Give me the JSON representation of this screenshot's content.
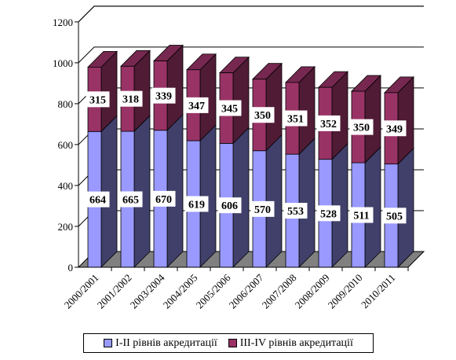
{
  "chart_data": {
    "type": "bar",
    "stacked": true,
    "three_d": true,
    "categories": [
      "2000/2001",
      "2001/2002",
      "2003/2004",
      "2004/2005",
      "2005/2006",
      "2006/2007",
      "2007/2008",
      "2008/2009",
      "2009/2010",
      "2010/2011"
    ],
    "series": [
      {
        "name": "І-ІІ рівнів акредитації",
        "values": [
          664,
          665,
          670,
          619,
          606,
          570,
          553,
          528,
          511,
          505
        ],
        "color": "#9999ff"
      },
      {
        "name": "ІІІ-IV рівнів акредитації",
        "values": [
          315,
          318,
          339,
          347,
          345,
          350,
          351,
          352,
          350,
          349
        ],
        "color": "#993366"
      }
    ],
    "ylim": [
      0,
      1200
    ],
    "yticks": [
      0,
      200,
      400,
      600,
      800,
      1000,
      1200
    ],
    "grid": true,
    "legend_position": "bottom",
    "data_labels": true
  }
}
